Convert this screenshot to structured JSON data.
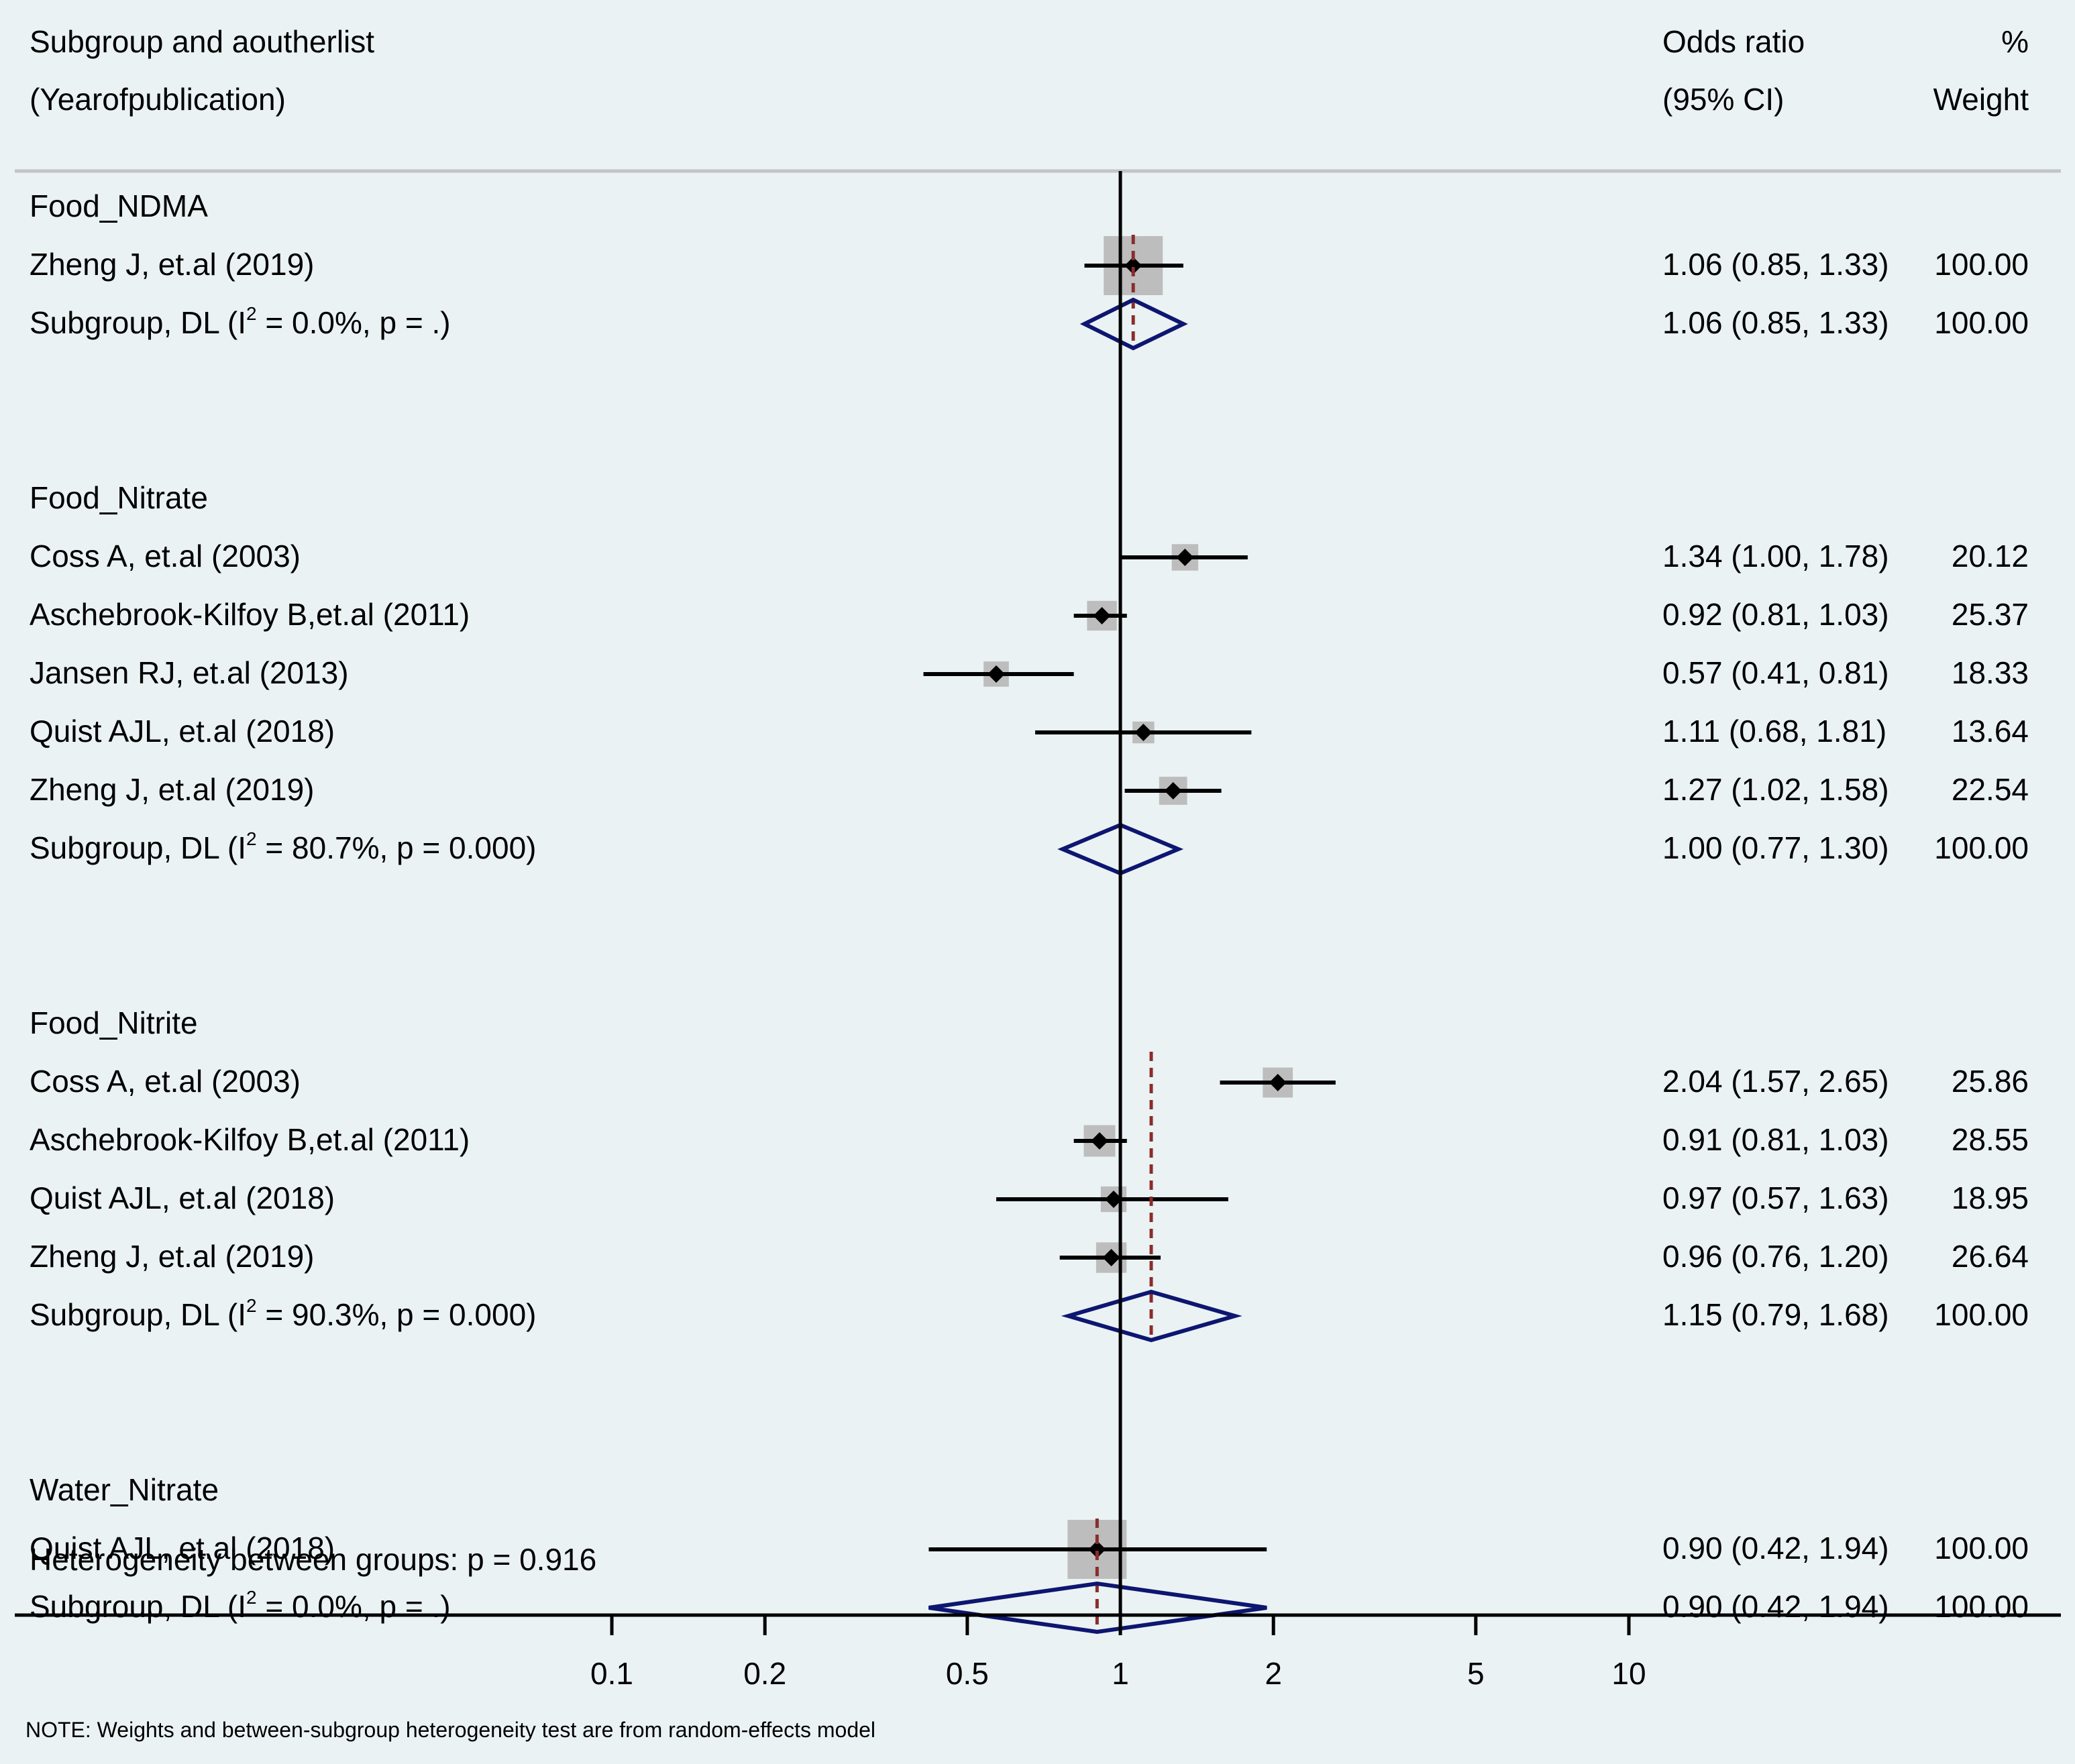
{
  "chart_data": {
    "type": "forest",
    "scale": "log",
    "ref_line": 1,
    "header": {
      "col1_line1": "Subgroup and aoutherlist",
      "col1_line2": "(Yearofpublication)",
      "col2_line1": "Odds ratio",
      "col2_line2": "(95% CI)",
      "col3_line1": "%",
      "col3_line2": "Weight"
    },
    "xticks": [
      {
        "value": 0.1,
        "label": "0.1"
      },
      {
        "value": 0.2,
        "label": "0.2"
      },
      {
        "value": 0.5,
        "label": "0.5"
      },
      {
        "value": 1,
        "label": "1"
      },
      {
        "value": 2,
        "label": "2"
      },
      {
        "value": 5,
        "label": "5"
      },
      {
        "value": 10,
        "label": "10"
      }
    ],
    "groups": [
      {
        "name": "Food_NDMA",
        "studies": [
          {
            "label": "Zheng J, et.al (2019)",
            "or": 1.06,
            "lo": 0.85,
            "hi": 1.33,
            "ci_text": "1.06 (0.85, 1.33)",
            "weight": "100.00"
          }
        ],
        "subgroup": {
          "label_pre": "Subgroup, DL (I",
          "label_sup": "2",
          "label_post": " = 0.0%, p = .)",
          "or": 1.06,
          "lo": 0.85,
          "hi": 1.33,
          "ci_text": "1.06 (0.85, 1.33)",
          "weight": "100.00"
        }
      },
      {
        "name": "Food_Nitrate",
        "studies": [
          {
            "label": "Coss A, et.al (2003)",
            "or": 1.34,
            "lo": 1.0,
            "hi": 1.78,
            "ci_text": "1.34 (1.00, 1.78)",
            "weight": "20.12"
          },
          {
            "label": "Aschebrook-Kilfoy B,et.al (2011)",
            "or": 0.92,
            "lo": 0.81,
            "hi": 1.03,
            "ci_text": "0.92 (0.81, 1.03)",
            "weight": "25.37"
          },
          {
            "label": "Jansen RJ, et.al (2013)",
            "or": 0.57,
            "lo": 0.41,
            "hi": 0.81,
            "ci_text": "0.57 (0.41, 0.81)",
            "weight": "18.33"
          },
          {
            "label": "Quist AJL, et.al (2018)",
            "or": 1.11,
            "lo": 0.68,
            "hi": 1.81,
            "ci_text": "1.11 (0.68, 1.81)",
            "weight": "13.64"
          },
          {
            "label": "Zheng J, et.al (2019)",
            "or": 1.27,
            "lo": 1.02,
            "hi": 1.58,
            "ci_text": "1.27 (1.02, 1.58)",
            "weight": "22.54"
          }
        ],
        "subgroup": {
          "label_pre": "Subgroup, DL (I",
          "label_sup": "2",
          "label_post": " = 80.7%, p = 0.000)",
          "or": 1.0,
          "lo": 0.77,
          "hi": 1.3,
          "ci_text": "1.00 (0.77, 1.30)",
          "weight": "100.00"
        }
      },
      {
        "name": "Food_Nitrite",
        "studies": [
          {
            "label": "Coss A, et.al (2003)",
            "or": 2.04,
            "lo": 1.57,
            "hi": 2.65,
            "ci_text": "2.04 (1.57, 2.65)",
            "weight": "25.86"
          },
          {
            "label": "Aschebrook-Kilfoy B,et.al (2011)",
            "or": 0.91,
            "lo": 0.81,
            "hi": 1.03,
            "ci_text": "0.91 (0.81, 1.03)",
            "weight": "28.55"
          },
          {
            "label": "Quist AJL, et.al (2018)",
            "or": 0.97,
            "lo": 0.57,
            "hi": 1.63,
            "ci_text": "0.97 (0.57, 1.63)",
            "weight": "18.95"
          },
          {
            "label": "Zheng J, et.al (2019)",
            "or": 0.96,
            "lo": 0.76,
            "hi": 1.2,
            "ci_text": "0.96 (0.76, 1.20)",
            "weight": "26.64"
          }
        ],
        "subgroup": {
          "label_pre": "Subgroup, DL (I",
          "label_sup": "2",
          "label_post": " = 90.3%, p = 0.000)",
          "or": 1.15,
          "lo": 0.79,
          "hi": 1.68,
          "ci_text": "1.15 (0.79, 1.68)",
          "weight": "100.00"
        }
      },
      {
        "name": "Water_Nitrate",
        "studies": [
          {
            "label": "Quist AJL, et.al (2018)",
            "or": 0.9,
            "lo": 0.42,
            "hi": 1.94,
            "ci_text": "0.90 (0.42, 1.94)",
            "weight": "100.00"
          }
        ],
        "subgroup": {
          "label_pre": "Subgroup, DL (I",
          "label_sup": "2",
          "label_post": " = 0.0%, p = .)",
          "or": 0.9,
          "lo": 0.42,
          "hi": 1.94,
          "ci_text": "0.90 (0.42, 1.94)",
          "weight": "100.00"
        }
      }
    ],
    "heterogeneity": "Heterogeneity between groups: p = 0.916",
    "note": "NOTE: Weights and between-subgroup heterogeneity test are from random-effects model"
  },
  "colors": {
    "background": "#eaf2f3",
    "weight_box": "#bdbdbd",
    "diamond": "#0d1670",
    "pooled_line": "#8b2c2c",
    "header_rule": "#c4c4c4"
  }
}
